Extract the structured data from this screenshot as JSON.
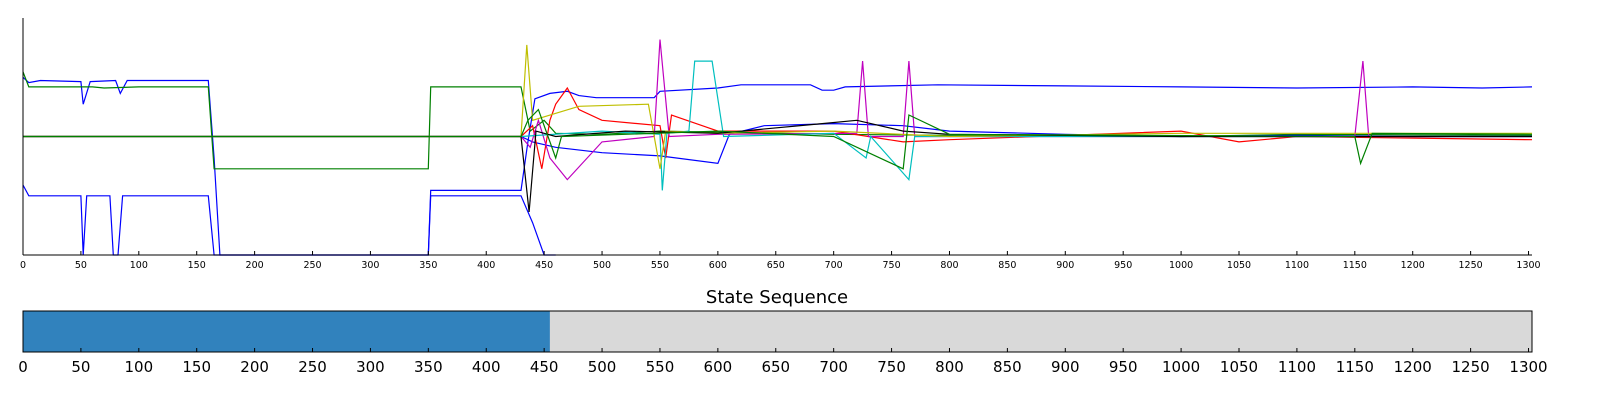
{
  "colors": {
    "blue": "#0000ff",
    "green": "#008000",
    "red": "#ff0000",
    "cyan": "#00bfbf",
    "magenta": "#bf00bf",
    "yellow": "#bfbf00",
    "black": "#000000",
    "state_a": "#3182bd",
    "state_b": "#d9d9d9"
  },
  "chart_data": [
    {
      "type": "line",
      "title": "",
      "xlabel": "",
      "ylabel": "",
      "xlim": [
        0,
        1303
      ],
      "ylim": [
        -11,
        11
      ],
      "xticks": [
        0,
        50,
        100,
        150,
        200,
        250,
        300,
        350,
        400,
        450,
        500,
        550,
        600,
        650,
        700,
        750,
        800,
        850,
        900,
        950,
        1000,
        1050,
        1100,
        1150,
        1200,
        1250,
        1300
      ],
      "y_tick_labels": "none",
      "grid": false,
      "legend": "none",
      "series": [
        {
          "color": "blue",
          "points": [
            [
              0,
              5.5
            ],
            [
              5,
              5.0
            ],
            [
              15,
              5.2
            ],
            [
              50,
              5.1
            ],
            [
              52,
              3
            ],
            [
              58,
              5.1
            ],
            [
              80,
              5.2
            ],
            [
              84,
              4
            ],
            [
              90,
              5.2
            ],
            [
              160,
              5.2
            ],
            [
              165,
              -2
            ],
            [
              170,
              -11
            ],
            [
              200,
              -11
            ],
            [
              350,
              -11
            ],
            [
              352,
              -5
            ],
            [
              355,
              -5
            ],
            [
              430,
              -5
            ],
            [
              436,
              -0.5
            ],
            [
              442,
              3.5
            ],
            [
              455,
              4.0
            ],
            [
              470,
              4.2
            ],
            [
              480,
              3.8
            ],
            [
              495,
              3.6
            ],
            [
              545,
              3.6
            ],
            [
              550,
              4.2
            ],
            [
              600,
              4.5
            ],
            [
              620,
              4.8
            ],
            [
              680,
              4.8
            ],
            [
              690,
              4.3
            ],
            [
              700,
              4.3
            ],
            [
              710,
              4.6
            ],
            [
              790,
              4.8
            ],
            [
              900,
              4.7
            ],
            [
              1000,
              4.6
            ],
            [
              1100,
              4.5
            ],
            [
              1200,
              4.6
            ],
            [
              1260,
              4.5
            ],
            [
              1303,
              4.6
            ]
          ]
        },
        {
          "color": "green",
          "points": [
            [
              0,
              6.0
            ],
            [
              5,
              4.6
            ],
            [
              60,
              4.6
            ],
            [
              70,
              4.5
            ],
            [
              100,
              4.6
            ],
            [
              160,
              4.6
            ],
            [
              165,
              -3.0
            ],
            [
              350,
              -3.0
            ],
            [
              352,
              4.6
            ],
            [
              430,
              4.6
            ],
            [
              438,
              0.5
            ],
            [
              450,
              1.5
            ],
            [
              460,
              0.3
            ],
            [
              500,
              0.2
            ],
            [
              550,
              0.5
            ],
            [
              600,
              0.4
            ],
            [
              700,
              0.2
            ],
            [
              800,
              0.1
            ],
            [
              1000,
              0.0
            ],
            [
              1100,
              0.2
            ],
            [
              1303,
              0.1
            ]
          ]
        },
        {
          "color": "blue",
          "points": [
            [
              0,
              -4.5
            ],
            [
              5,
              -5.5
            ],
            [
              50,
              -5.5
            ],
            [
              52,
              -11
            ],
            [
              55,
              -5.5
            ],
            [
              75,
              -5.5
            ],
            [
              78,
              -11
            ],
            [
              82,
              -11
            ],
            [
              86,
              -5.5
            ],
            [
              160,
              -5.5
            ],
            [
              165,
              -11
            ],
            [
              350,
              -11
            ],
            [
              352,
              -5.5
            ],
            [
              430,
              -5.5
            ],
            [
              440,
              -8
            ],
            [
              450,
              -11
            ],
            [
              460,
              -11
            ]
          ]
        },
        {
          "color": "blue",
          "points": [
            [
              430,
              0.0
            ],
            [
              440,
              -0.5
            ],
            [
              460,
              -1.0
            ],
            [
              500,
              -1.5
            ],
            [
              550,
              -1.8
            ],
            [
              600,
              -2.5
            ],
            [
              610,
              0.2
            ],
            [
              640,
              1.0
            ],
            [
              700,
              1.2
            ],
            [
              760,
              1.0
            ],
            [
              800,
              0.5
            ],
            [
              900,
              0.2
            ],
            [
              1000,
              0.0
            ],
            [
              1100,
              0.1
            ],
            [
              1200,
              0.0
            ],
            [
              1303,
              0.0
            ]
          ]
        },
        {
          "color": "red",
          "points": [
            [
              0,
              0.0
            ],
            [
              430,
              0.0
            ],
            [
              440,
              1.0
            ],
            [
              448,
              -3.0
            ],
            [
              455,
              1.5
            ],
            [
              460,
              3.0
            ],
            [
              470,
              4.5
            ],
            [
              480,
              2.5
            ],
            [
              500,
              1.5
            ],
            [
              550,
              1.0
            ],
            [
              555,
              -2
            ],
            [
              560,
              2.0
            ],
            [
              600,
              0.5
            ],
            [
              700,
              0.5
            ],
            [
              760,
              -0.5
            ],
            [
              800,
              -0.3
            ],
            [
              1000,
              0.5
            ],
            [
              1050,
              -0.5
            ],
            [
              1100,
              0.0
            ],
            [
              1303,
              -0.3
            ]
          ]
        },
        {
          "color": "magenta",
          "points": [
            [
              0,
              0.0
            ],
            [
              430,
              0.0
            ],
            [
              438,
              -1.0
            ],
            [
              445,
              1.5
            ],
            [
              455,
              -2
            ],
            [
              470,
              -4
            ],
            [
              500,
              -0.5
            ],
            [
              545,
              0.0
            ],
            [
              550,
              9.0
            ],
            [
              558,
              0.0
            ],
            [
              600,
              0.2
            ],
            [
              720,
              0.3
            ],
            [
              725,
              7.0
            ],
            [
              730,
              0.0
            ],
            [
              760,
              0.0
            ],
            [
              765,
              7.0
            ],
            [
              770,
              0.0
            ],
            [
              1150,
              0.0
            ],
            [
              1157,
              7.0
            ],
            [
              1162,
              0.0
            ],
            [
              1303,
              0.0
            ]
          ]
        },
        {
          "color": "cyan",
          "points": [
            [
              0,
              0.0
            ],
            [
              430,
              0.0
            ],
            [
              500,
              0.5
            ],
            [
              550,
              0.2
            ],
            [
              552,
              -5.0
            ],
            [
              556,
              0.3
            ],
            [
              575,
              0.5
            ],
            [
              580,
              7.0
            ],
            [
              595,
              7.0
            ],
            [
              605,
              0.0
            ],
            [
              700,
              0.3
            ],
            [
              728,
              -2
            ],
            [
              732,
              0.0
            ],
            [
              765,
              -4.0
            ],
            [
              770,
              0.0
            ],
            [
              1303,
              0.0
            ]
          ]
        },
        {
          "color": "yellow",
          "points": [
            [
              0,
              0.0
            ],
            [
              430,
              0.0
            ],
            [
              435,
              8.5
            ],
            [
              440,
              1.5
            ],
            [
              480,
              2.8
            ],
            [
              540,
              3.0
            ],
            [
              550,
              -3.0
            ],
            [
              555,
              0.5
            ],
            [
              600,
              0.3
            ],
            [
              700,
              0.5
            ],
            [
              800,
              0.0
            ],
            [
              1000,
              0.3
            ],
            [
              1303,
              0.3
            ]
          ]
        },
        {
          "color": "black",
          "points": [
            [
              0,
              0.0
            ],
            [
              430,
              0.0
            ],
            [
              437,
              -7.0
            ],
            [
              443,
              0.5
            ],
            [
              460,
              0.0
            ],
            [
              520,
              0.5
            ],
            [
              600,
              0.3
            ],
            [
              690,
              1.2
            ],
            [
              720,
              1.5
            ],
            [
              760,
              0.5
            ],
            [
              800,
              0.2
            ],
            [
              1000,
              0.0
            ],
            [
              1303,
              0.0
            ]
          ]
        },
        {
          "color": "green",
          "points": [
            [
              0,
              0.0
            ],
            [
              430,
              0.0
            ],
            [
              436,
              1.5
            ],
            [
              445,
              2.5
            ],
            [
              460,
              -2
            ],
            [
              465,
              0.0
            ],
            [
              600,
              0.5
            ],
            [
              700,
              0.0
            ],
            [
              760,
              -3.0
            ],
            [
              765,
              2.0
            ],
            [
              800,
              0.2
            ],
            [
              1150,
              0.0
            ],
            [
              1155,
              -2.5
            ],
            [
              1165,
              0.3
            ],
            [
              1303,
              0.2
            ]
          ]
        }
      ]
    },
    {
      "type": "bar",
      "title": "State Sequence",
      "xlim": [
        0,
        1303
      ],
      "xticks": [
        0,
        50,
        100,
        150,
        200,
        250,
        300,
        350,
        400,
        450,
        500,
        550,
        600,
        650,
        700,
        750,
        800,
        850,
        900,
        950,
        1000,
        1050,
        1100,
        1150,
        1200,
        1250,
        1300
      ],
      "segments": [
        {
          "start": 0,
          "end": 455,
          "color": "state_a"
        },
        {
          "start": 455,
          "end": 1303,
          "color": "state_b"
        }
      ]
    }
  ]
}
